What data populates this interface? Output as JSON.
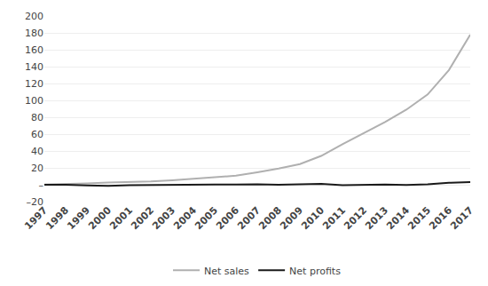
{
  "chart_data": {
    "type": "line",
    "x": [
      1997,
      1998,
      1999,
      2000,
      2001,
      2002,
      2003,
      2004,
      2005,
      2006,
      2007,
      2008,
      2009,
      2010,
      2011,
      2012,
      2013,
      2014,
      2015,
      2016,
      2017
    ],
    "series": [
      {
        "name": "Net sales",
        "color": "#b0b0b0",
        "values": [
          0.15,
          0.61,
          1.64,
          2.76,
          3.12,
          3.93,
          5.26,
          6.92,
          8.49,
          10.71,
          14.84,
          19.17,
          24.51,
          34.2,
          48.08,
          61.09,
          74.45,
          88.99,
          107.01,
          135.99,
          177.87
        ]
      },
      {
        "name": "Net profits",
        "color": "#1a1a1a",
        "values": [
          -0.03,
          0.11,
          -0.72,
          -1.41,
          -0.57,
          -0.15,
          0.04,
          0.59,
          0.36,
          0.19,
          0.48,
          -0.12,
          0.9,
          1.15,
          -0.64,
          -0.04,
          0.27,
          -0.24,
          0.6,
          2.37,
          3.03
        ]
      }
    ],
    "xlim": [
      1997,
      2017
    ],
    "xticks": [
      1997,
      1998,
      1999,
      2000,
      2001,
      2002,
      2003,
      2004,
      2005,
      2006,
      2007,
      2008,
      2009,
      2010,
      2011,
      2012,
      2013,
      2014,
      2015,
      2016,
      2017
    ],
    "ylim": [
      -20,
      200
    ],
    "yticks": [
      {
        "value": -20,
        "label": "–20"
      },
      {
        "value": 0,
        "label": "–"
      },
      20,
      40,
      60,
      80,
      100,
      120,
      140,
      160,
      180,
      200
    ],
    "grid": true,
    "legend": "bottom"
  }
}
